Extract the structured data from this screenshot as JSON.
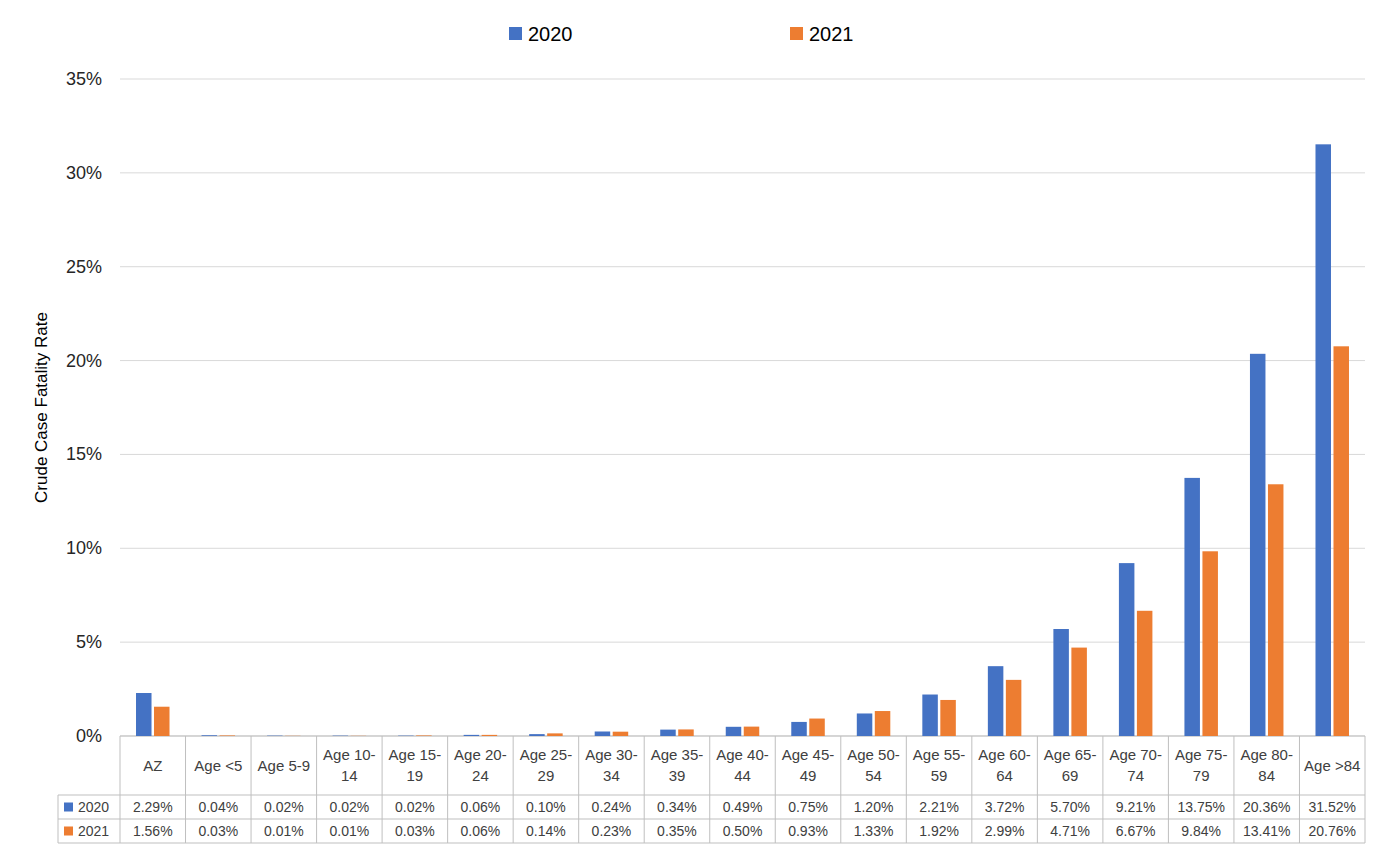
{
  "chart_data": {
    "type": "bar",
    "y_label": "Crude Case Fatality Rate",
    "categories": [
      "AZ",
      "Age <5",
      "Age 5-9",
      "Age 10-14",
      "Age 15-19",
      "Age 20-24",
      "Age 25-29",
      "Age 30-34",
      "Age 35-39",
      "Age 40-44",
      "Age 45-49",
      "Age 50-54",
      "Age 55-59",
      "Age 60-64",
      "Age 65-69",
      "Age 70-74",
      "Age 75-79",
      "Age 80-84",
      "Age >84"
    ],
    "series": [
      {
        "name": "2020",
        "color": "#4472c4",
        "values": [
          2.29,
          0.04,
          0.02,
          0.02,
          0.02,
          0.06,
          0.1,
          0.24,
          0.34,
          0.49,
          0.75,
          1.2,
          2.21,
          3.72,
          5.7,
          9.21,
          13.75,
          20.36,
          31.52
        ],
        "value_labels": [
          "2.29%",
          "0.04%",
          "0.02%",
          "0.02%",
          "0.02%",
          "0.06%",
          "0.10%",
          "0.24%",
          "0.34%",
          "0.49%",
          "0.75%",
          "1.20%",
          "2.21%",
          "3.72%",
          "5.70%",
          "9.21%",
          "13.75%",
          "20.36%",
          "31.52%"
        ]
      },
      {
        "name": "2021",
        "color": "#ed7d31",
        "values": [
          1.56,
          0.03,
          0.01,
          0.01,
          0.03,
          0.06,
          0.14,
          0.23,
          0.35,
          0.5,
          0.93,
          1.33,
          1.92,
          2.99,
          4.71,
          6.67,
          9.84,
          13.41,
          20.76
        ],
        "value_labels": [
          "1.56%",
          "0.03%",
          "0.01%",
          "0.01%",
          "0.03%",
          "0.06%",
          "0.14%",
          "0.23%",
          "0.35%",
          "0.50%",
          "0.93%",
          "1.33%",
          "1.92%",
          "2.99%",
          "4.71%",
          "6.67%",
          "9.84%",
          "13.41%",
          "20.76%"
        ]
      }
    ],
    "ylim": [
      0,
      35
    ],
    "yticks": [
      {
        "value": 0,
        "label": "0%"
      },
      {
        "value": 5,
        "label": "5%"
      },
      {
        "value": 10,
        "label": "10%"
      },
      {
        "value": 15,
        "label": "15%"
      },
      {
        "value": 20,
        "label": "20%"
      },
      {
        "value": 25,
        "label": "25%"
      },
      {
        "value": 30,
        "label": "30%"
      },
      {
        "value": 35,
        "label": "35%"
      }
    ],
    "grid": true,
    "legend": "top"
  }
}
